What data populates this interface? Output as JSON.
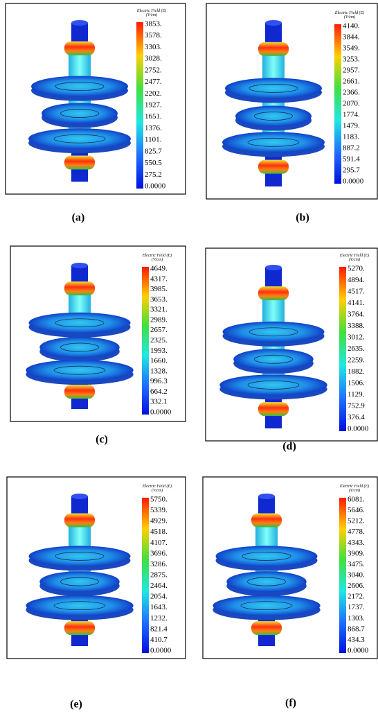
{
  "panels": [
    {
      "caption": "(a)",
      "colorbar": {
        "title": "Electric Field (E)",
        "unit": "(V/cm)",
        "labels": [
          "3853.",
          "3578.",
          "3303.",
          "3028.",
          "2752.",
          "2477.",
          "2202.",
          "1927.",
          "1651.",
          "1376.",
          "1101.",
          "825.7",
          "550.5",
          "275.2",
          "0.0000"
        ]
      }
    },
    {
      "caption": "(b)",
      "colorbar": {
        "title": "Electric Field (E)",
        "unit": "(V/cm)",
        "labels": [
          "4140.",
          "3844.",
          "3549.",
          "3253.",
          "2957.",
          "2661.",
          "2366.",
          "2070.",
          "1774.",
          "1479.",
          "1183.",
          "887.2",
          "591.4",
          "295.7",
          "0.0000"
        ]
      }
    },
    {
      "caption": "(c)",
      "colorbar": {
        "title": "Electric Field (E)",
        "unit": "(V/cm)",
        "labels": [
          "4649.",
          "4317.",
          "3985.",
          "3653.",
          "3321.",
          "2989.",
          "2657.",
          "2325.",
          "1993.",
          "1660.",
          "1328.",
          "996.3",
          "664.2",
          "332.1",
          "0.0000"
        ]
      }
    },
    {
      "caption": "(d)",
      "colorbar": {
        "title": "Electric Field (E)",
        "unit": "(V/cm)",
        "labels": [
          "5270.",
          "4894.",
          "4517.",
          "4141.",
          "3764.",
          "3388.",
          "3012.",
          "2635.",
          "2259.",
          "1882.",
          "1506.",
          "1129.",
          "752.9",
          "376.4",
          "0.0000"
        ]
      }
    },
    {
      "caption": "(e)",
      "colorbar": {
        "title": "Electric Field (E)",
        "unit": "(V/cm)",
        "labels": [
          "5750.",
          "5339.",
          "4929.",
          "4518.",
          "4107.",
          "3696.",
          "3286.",
          "2875.",
          "2464.",
          "2054.",
          "1643.",
          "1232.",
          "821.4",
          "410.7",
          "0.0000"
        ]
      }
    },
    {
      "caption": "(f)",
      "colorbar": {
        "title": "Electric Field (E)",
        "unit": "(V/cm)",
        "labels": [
          "6081.",
          "5646.",
          "5212.",
          "4778.",
          "4343.",
          "3909.",
          "3475.",
          "3040.",
          "2606.",
          "2172.",
          "1737.",
          "1303.",
          "868.7",
          "434.3",
          "0.0000"
        ]
      }
    }
  ]
}
